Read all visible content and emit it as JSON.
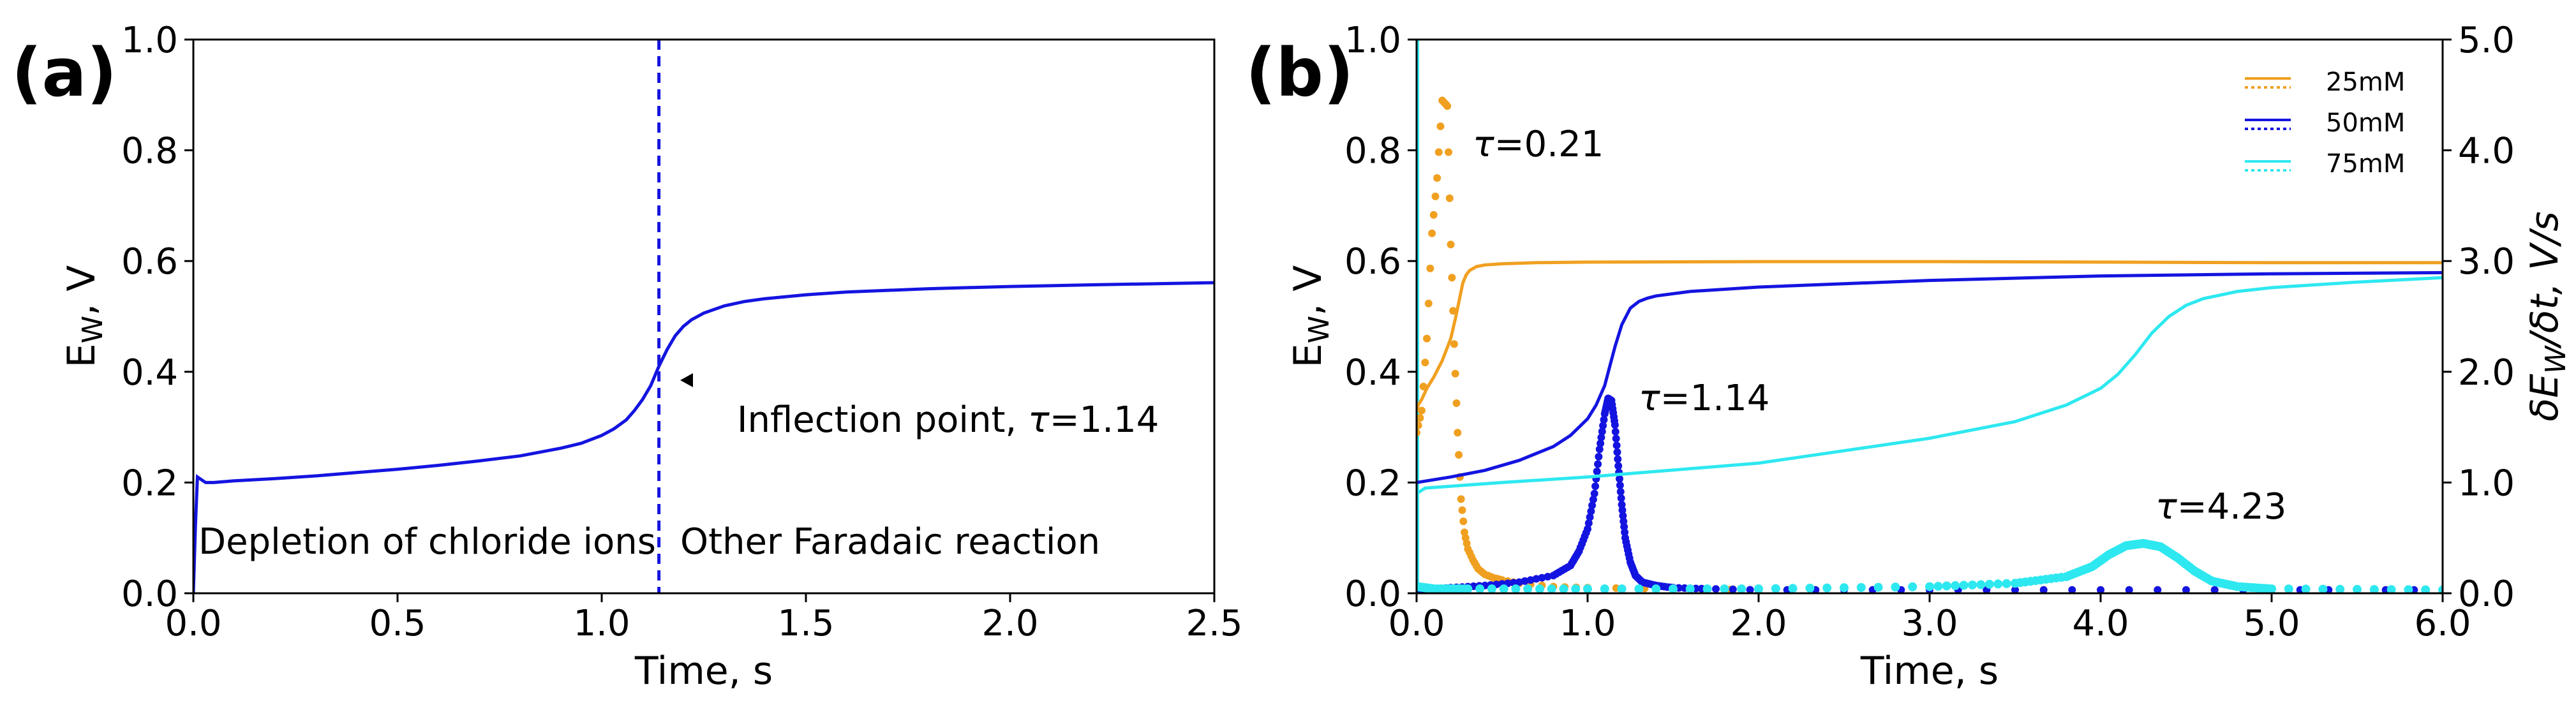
{
  "figure": {
    "panel_a_label": "(a)",
    "panel_b_label": "(b)"
  },
  "chart_data": [
    {
      "type": "line",
      "panel": "(a)",
      "xlabel": "Time, s",
      "ylabel": "E_W, V",
      "ylabel_main": "E",
      "ylabel_sub": "W",
      "ylabel_rest": ", V",
      "xlim": [
        0.0,
        2.5
      ],
      "ylim": [
        0.0,
        1.0
      ],
      "x_ticks": [
        "0.0",
        "0.5",
        "1.0",
        "1.5",
        "2.0",
        "2.5"
      ],
      "y_ticks": [
        "0.0",
        "0.2",
        "0.4",
        "0.6",
        "0.8",
        "1.0"
      ],
      "series": [
        {
          "name": "E_W",
          "color": "#1414e0",
          "x": [
            0,
            0.005,
            0.01,
            0.02,
            0.03,
            0.05,
            0.1,
            0.2,
            0.3,
            0.4,
            0.5,
            0.6,
            0.7,
            0.8,
            0.9,
            0.95,
            1.0,
            1.03,
            1.06,
            1.08,
            1.1,
            1.12,
            1.14,
            1.16,
            1.18,
            1.2,
            1.22,
            1.25,
            1.3,
            1.35,
            1.4,
            1.5,
            1.6,
            1.8,
            2.0,
            2.2,
            2.5
          ],
          "y": [
            0.0,
            0.12,
            0.21,
            0.205,
            0.2,
            0.2,
            0.203,
            0.207,
            0.212,
            0.218,
            0.224,
            0.231,
            0.239,
            0.248,
            0.262,
            0.271,
            0.285,
            0.297,
            0.313,
            0.33,
            0.35,
            0.375,
            0.41,
            0.44,
            0.465,
            0.482,
            0.494,
            0.506,
            0.519,
            0.527,
            0.532,
            0.539,
            0.544,
            0.55,
            0.554,
            0.557,
            0.561
          ]
        }
      ],
      "vline": {
        "x": 1.14,
        "color": "#1414e0",
        "style": "dashed"
      },
      "annotations": {
        "inflection_prefix": "Inflection point, ",
        "inflection_tau_symbol": "τ",
        "inflection_tau_value": "=1.14",
        "left_region": "Depletion of chloride ions",
        "right_region": "Other Faradaic reaction"
      }
    },
    {
      "type": "line",
      "panel": "(b)",
      "xlabel": "Time, s",
      "ylabel_main": "E",
      "ylabel_sub": "W",
      "ylabel_rest": ", V",
      "y2label": "δE_W/δt, V/s",
      "y2label_main": "δE",
      "y2label_sub": "W",
      "y2label_rest": "/δt, V/s",
      "xlim": [
        0.0,
        6.0
      ],
      "ylim": [
        0.0,
        1.0
      ],
      "y2lim": [
        0.0,
        5.0
      ],
      "x_ticks": [
        "0.0",
        "1.0",
        "2.0",
        "3.0",
        "4.0",
        "5.0",
        "6.0"
      ],
      "y_ticks": [
        "0.0",
        "0.2",
        "0.4",
        "0.6",
        "0.8",
        "1.0"
      ],
      "y2_ticks": [
        "0.0",
        "1.0",
        "2.0",
        "3.0",
        "4.0",
        "5.0"
      ],
      "legend": {
        "placement": "top-right",
        "entries": [
          "25mM",
          "50mM",
          "75mM"
        ]
      },
      "series": [
        {
          "name": "25mM",
          "color": "#f0a020",
          "potential": {
            "x": [
              0,
              0.01,
              0.03,
              0.06,
              0.1,
              0.15,
              0.2,
              0.23,
              0.25,
              0.27,
              0.29,
              0.31,
              0.35,
              0.4,
              0.5,
              0.7,
              1.0,
              2.0,
              3.0,
              4.0,
              5.0,
              6.0
            ],
            "y": [
              0.33,
              0.34,
              0.35,
              0.37,
              0.39,
              0.42,
              0.46,
              0.5,
              0.53,
              0.56,
              0.575,
              0.583,
              0.59,
              0.593,
              0.595,
              0.597,
              0.598,
              0.599,
              0.599,
              0.598,
              0.597,
              0.597
            ]
          },
          "derivative": {
            "x": [
              0.0,
              0.03,
              0.06,
              0.09,
              0.12,
              0.15,
              0.18,
              0.2,
              0.22,
              0.24,
              0.26,
              0.28,
              0.3,
              0.33,
              0.36,
              0.4,
              0.45,
              0.5,
              0.6,
              0.8,
              1.0,
              1.5,
              2.0,
              3.0,
              4.0,
              5.0,
              6.0
            ],
            "y": [
              1.45,
              1.65,
              2.3,
              3.25,
              3.75,
              4.45,
              4.4,
              3.15,
              2.25,
              1.45,
              0.85,
              0.55,
              0.4,
              0.3,
              0.22,
              0.17,
              0.14,
              0.12,
              0.09,
              0.06,
              0.05,
              0.04,
              0.03,
              0.03,
              0.03,
              0.03,
              0.03
            ]
          },
          "tau_label": "=0.21"
        },
        {
          "name": "50mM",
          "color": "#1414e0",
          "potential": {
            "x": [
              0,
              0.2,
              0.4,
              0.6,
              0.8,
              0.9,
              1.0,
              1.05,
              1.1,
              1.13,
              1.16,
              1.2,
              1.25,
              1.3,
              1.35,
              1.4,
              1.6,
              2.0,
              3.0,
              4.0,
              5.0,
              6.0
            ],
            "y": [
              0.2,
              0.21,
              0.222,
              0.24,
              0.265,
              0.285,
              0.315,
              0.34,
              0.375,
              0.41,
              0.445,
              0.485,
              0.515,
              0.527,
              0.533,
              0.537,
              0.545,
              0.553,
              0.565,
              0.573,
              0.577,
              0.579
            ]
          },
          "derivative": {
            "x": [
              0.0,
              0.05,
              0.2,
              0.4,
              0.6,
              0.8,
              0.9,
              0.95,
              1.0,
              1.04,
              1.07,
              1.1,
              1.12,
              1.14,
              1.16,
              1.18,
              1.2,
              1.22,
              1.25,
              1.28,
              1.32,
              1.4,
              1.5,
              1.7,
              2.0,
              3.0,
              4.0,
              5.0,
              6.0
            ],
            "y": [
              0.0,
              0.03,
              0.05,
              0.07,
              0.1,
              0.16,
              0.25,
              0.38,
              0.58,
              0.9,
              1.3,
              1.62,
              1.76,
              1.74,
              1.52,
              1.15,
              0.8,
              0.5,
              0.28,
              0.16,
              0.1,
              0.07,
              0.05,
              0.04,
              0.03,
              0.03,
              0.03,
              0.03,
              0.03
            ]
          },
          "tau_label": "=1.14"
        },
        {
          "name": "75mM",
          "color": "#2ee8f0",
          "potential": {
            "x": [
              0,
              0.05,
              0.5,
              1.0,
              2.0,
              3.0,
              3.5,
              3.8,
              4.0,
              4.1,
              4.2,
              4.3,
              4.4,
              4.5,
              4.6,
              4.8,
              5.0,
              5.5,
              6.0
            ],
            "y": [
              0.18,
              0.19,
              0.2,
              0.21,
              0.235,
              0.28,
              0.31,
              0.34,
              0.37,
              0.395,
              0.43,
              0.47,
              0.5,
              0.52,
              0.532,
              0.545,
              0.552,
              0.562,
              0.57
            ]
          },
          "derivative": {
            "x": [
              0.0,
              0.05,
              0.1,
              0.3,
              1.0,
              2.0,
              3.0,
              3.5,
              3.8,
              3.95,
              4.05,
              4.15,
              4.25,
              4.35,
              4.45,
              4.55,
              4.65,
              4.8,
              5.0,
              6.0
            ],
            "y": [
              0.06,
              0.05,
              0.04,
              0.04,
              0.04,
              0.04,
              0.06,
              0.09,
              0.15,
              0.24,
              0.35,
              0.43,
              0.45,
              0.42,
              0.32,
              0.2,
              0.11,
              0.06,
              0.04,
              0.03
            ]
          },
          "tau_label": "=4.23"
        }
      ],
      "tau_symbol": "τ"
    }
  ]
}
